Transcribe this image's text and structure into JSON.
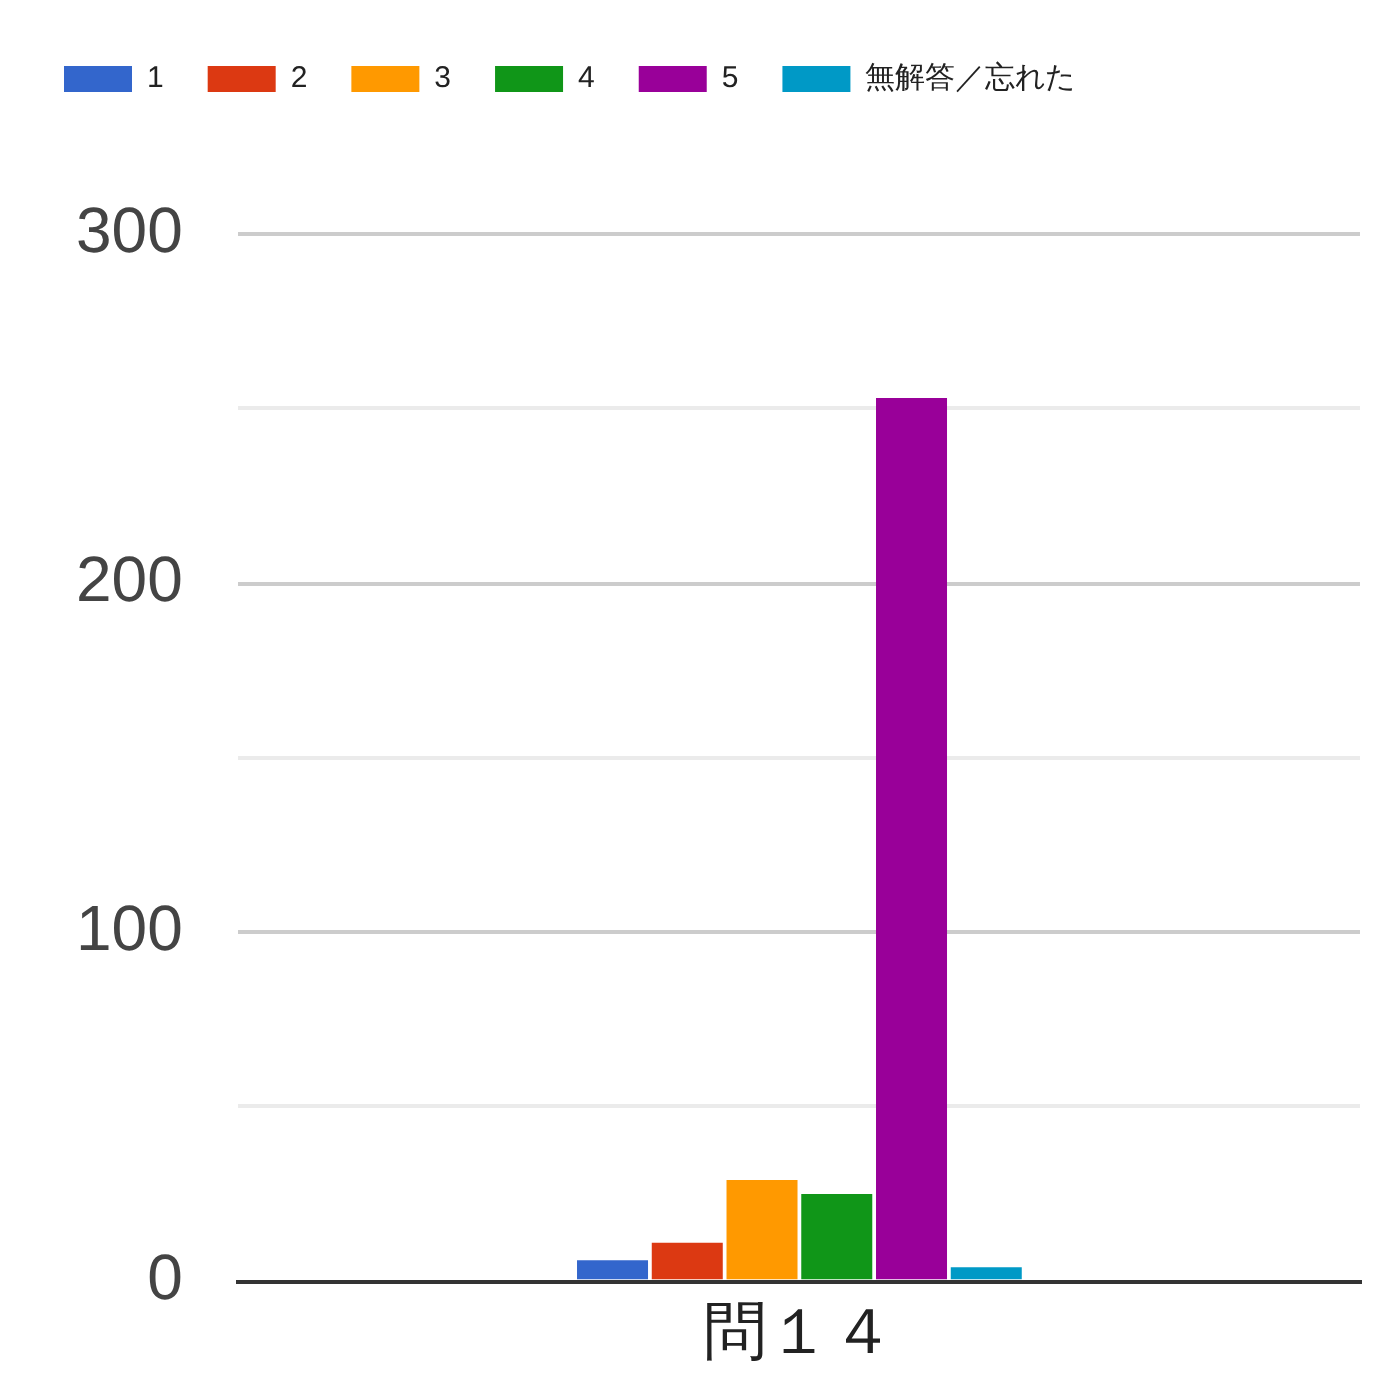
{
  "chart_data": {
    "type": "bar",
    "categories": [
      "問１４"
    ],
    "series": [
      {
        "name": "1",
        "color": "#3366cc",
        "values": [
          6
        ]
      },
      {
        "name": "2",
        "color": "#dc3912",
        "values": [
          11
        ]
      },
      {
        "name": "3",
        "color": "#ff9900",
        "values": [
          29
        ]
      },
      {
        "name": "4",
        "color": "#109618",
        "values": [
          25
        ]
      },
      {
        "name": "5",
        "color": "#990099",
        "values": [
          253
        ]
      },
      {
        "name": "無解答／忘れた",
        "color": "#0099c6",
        "values": [
          4
        ]
      }
    ],
    "ylim": [
      0,
      300
    ],
    "yticks": [
      0,
      {
        "value": 50,
        "label": null
      },
      100,
      {
        "value": 150,
        "label": null
      },
      200,
      {
        "value": 250,
        "label": null
      },
      300
    ],
    "grid": "y",
    "legend": "top"
  }
}
